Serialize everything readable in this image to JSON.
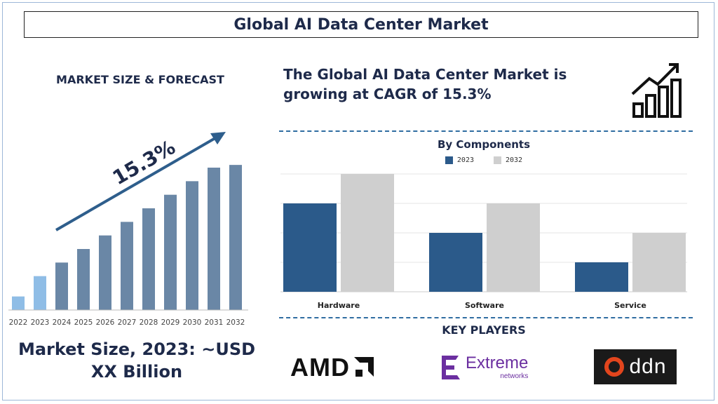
{
  "title": "Global AI Data Center Market",
  "left_heading": "MARKET SIZE & FORECAST",
  "cagr_text": "The Global AI Data Center Market is growing at CAGR of 15.3%",
  "market_size_text": "Market Size, 2023: ~USD XX Billion",
  "key_players_title": "KEY PLAYERS",
  "players": {
    "amd": "AMD",
    "extreme_main": "Extreme",
    "extreme_sub": "networks",
    "ddn": "ddn"
  },
  "icons": [
    "growth-chart-icon",
    "trend-arrow-icon"
  ],
  "colors": {
    "navy": "#1e2a4a",
    "bar_main": "#6a87a6",
    "bar_highlight": "#8fbde6",
    "series_2023": "#2b5a8a",
    "series_2032": "#cfcfcf",
    "amd_red_accent": "#111111",
    "extreme_purple": "#6b2fa0",
    "ddn_orange": "#e2451d"
  },
  "chart_data": [
    {
      "type": "bar",
      "title": "",
      "categories": [
        "2022",
        "2023",
        "2024",
        "2025",
        "2026",
        "2027",
        "2028",
        "2029",
        "2030",
        "2031",
        "2032"
      ],
      "values": [
        1,
        2.5,
        3.5,
        4.5,
        5.5,
        6.5,
        7.5,
        8.5,
        9.5,
        10.5,
        10.7
      ],
      "highlight": [
        "2022",
        "2023"
      ],
      "annotation": "15.3%",
      "xlabel": "",
      "ylabel": "",
      "ylim": [
        0,
        12
      ],
      "grid": false
    },
    {
      "type": "bar",
      "title": "By Components",
      "categories": [
        "Hardware",
        "Software",
        "Service"
      ],
      "series": [
        {
          "name": "2023",
          "values": [
            3,
            2,
            1
          ]
        },
        {
          "name": "2032",
          "values": [
            4,
            3,
            2
          ]
        }
      ],
      "xlabel": "",
      "ylabel": "",
      "ylim": [
        0,
        4
      ],
      "grid": true,
      "legend": "top-center"
    }
  ]
}
